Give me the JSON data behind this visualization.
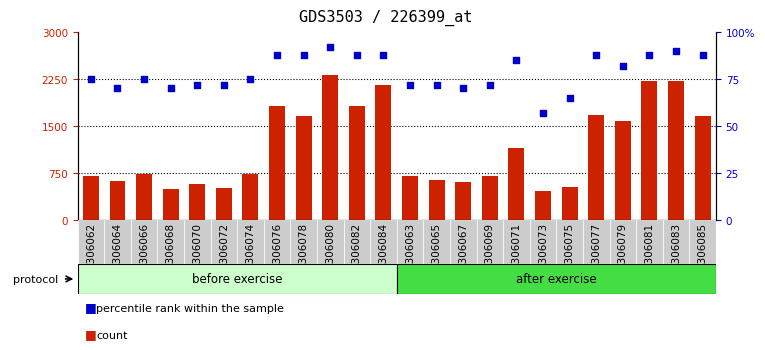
{
  "title": "GDS3503 / 226399_at",
  "categories": [
    "GSM306062",
    "GSM306064",
    "GSM306066",
    "GSM306068",
    "GSM306070",
    "GSM306072",
    "GSM306074",
    "GSM306076",
    "GSM306078",
    "GSM306080",
    "GSM306082",
    "GSM306084",
    "GSM306063",
    "GSM306065",
    "GSM306067",
    "GSM306069",
    "GSM306071",
    "GSM306073",
    "GSM306075",
    "GSM306077",
    "GSM306079",
    "GSM306081",
    "GSM306083",
    "GSM306085"
  ],
  "bar_values": [
    700,
    620,
    730,
    490,
    570,
    510,
    730,
    1820,
    1650,
    2320,
    1820,
    2150,
    690,
    640,
    600,
    690,
    1150,
    460,
    520,
    1680,
    1570,
    2220,
    2220,
    1660
  ],
  "dot_values": [
    75,
    70,
    75,
    70,
    72,
    72,
    75,
    88,
    88,
    92,
    88,
    88,
    72,
    72,
    70,
    72,
    85,
    57,
    65,
    88,
    82,
    88,
    90,
    88
  ],
  "before_count": 12,
  "after_count": 12,
  "bar_color": "#cc2200",
  "dot_color": "#0000cc",
  "before_color": "#ccffcc",
  "after_color": "#44dd44",
  "ylim_left": [
    0,
    3000
  ],
  "ylim_right": [
    0,
    100
  ],
  "yticks_left": [
    0,
    750,
    1500,
    2250,
    3000
  ],
  "yticks_right": [
    0,
    25,
    50,
    75,
    100
  ],
  "grid_values": [
    750,
    1500,
    2250
  ],
  "title_fontsize": 11,
  "tick_fontsize": 7.5
}
